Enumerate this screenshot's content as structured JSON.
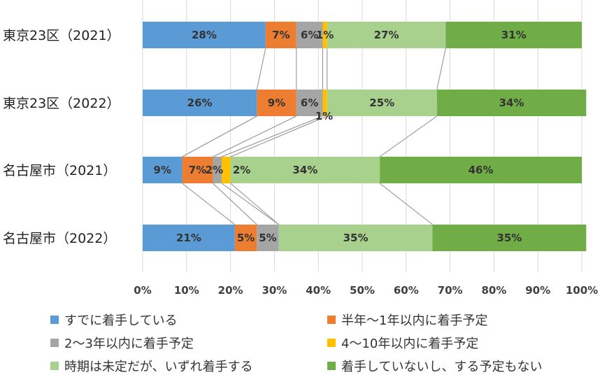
{
  "chart_data": {
    "type": "bar",
    "orientation": "horizontal",
    "stacked": "percent",
    "categories": [
      "東京23区（2021）",
      "東京23区（2022）",
      "名古屋市（2021）",
      "名古屋市（2022）"
    ],
    "series": [
      {
        "name": "すでに着手している",
        "color": "#5b9bd5",
        "values": [
          28,
          26,
          9,
          21
        ],
        "labels": [
          "28%",
          "26%",
          "9%",
          "21%"
        ]
      },
      {
        "name": "半年～1年以内に着手予定",
        "color": "#ed7d31",
        "values": [
          7,
          9,
          7,
          5
        ],
        "labels": [
          "7%",
          "9%",
          "7%",
          "5%"
        ]
      },
      {
        "name": "2～3年以内に着手予定",
        "color": "#a5a5a5",
        "values": [
          6,
          6,
          2,
          5
        ],
        "labels": [
          "6%",
          "6%",
          "2%",
          "5%"
        ]
      },
      {
        "name": "4～10年以内に着手予定",
        "color": "#ffc000",
        "values": [
          1,
          1,
          2,
          0
        ],
        "labels": [
          "1%",
          "1%",
          "2%",
          ""
        ]
      },
      {
        "name": "時期は未定だが、いずれ着手する",
        "color": "#a9d18e",
        "values": [
          27,
          25,
          34,
          35
        ],
        "labels": [
          "27%",
          "25%",
          "34%",
          "35%"
        ]
      },
      {
        "name": "着手していないし、する予定もない",
        "color": "#70ad47",
        "values": [
          31,
          34,
          46,
          35
        ],
        "labels": [
          "31%",
          "34%",
          "46%",
          "35%"
        ]
      }
    ],
    "xlim": [
      0,
      100
    ],
    "x_ticks": [
      "0%",
      "10%",
      "20%",
      "30%",
      "40%",
      "50%",
      "60%",
      "70%",
      "80%",
      "90%",
      "100%"
    ],
    "grid": true,
    "legend_position": "bottom",
    "series_lines": true
  }
}
